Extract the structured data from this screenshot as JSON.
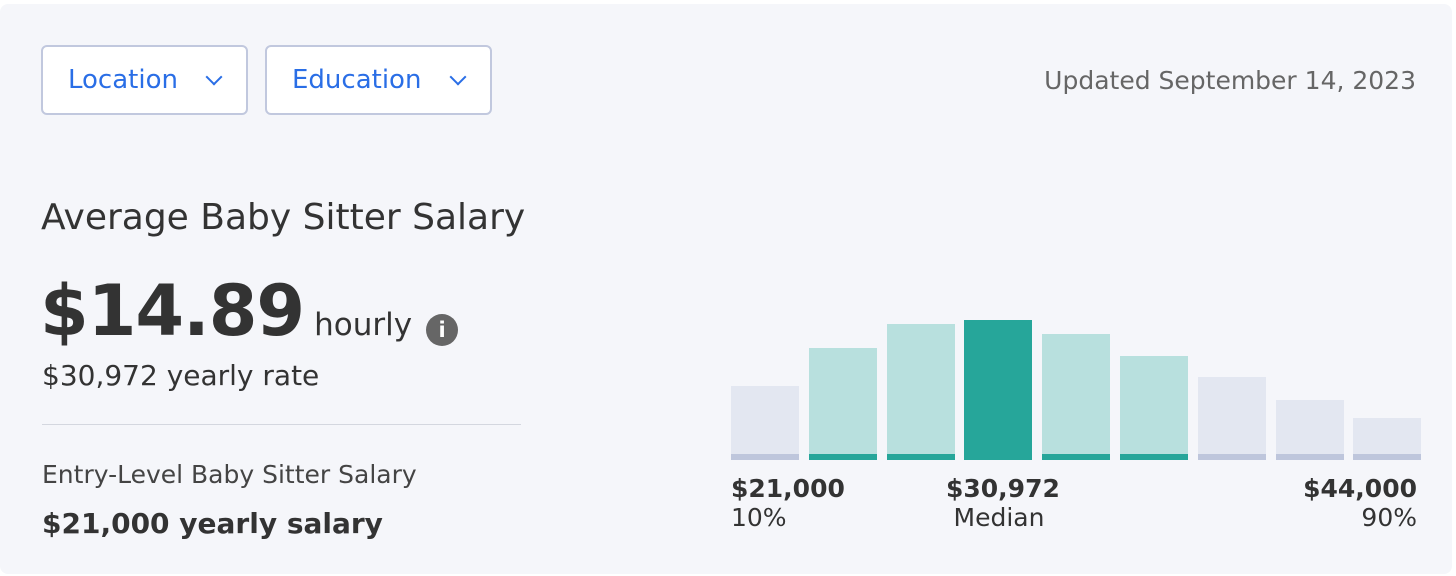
{
  "filters": [
    {
      "label": "Location"
    },
    {
      "label": "Education"
    }
  ],
  "updated": "Updated September 14, 2023",
  "title": "Average Baby Sitter Salary",
  "hourly": {
    "value": "$14.89",
    "unit": "hourly",
    "icon": "info-icon"
  },
  "yearly_rate": "$30,972 yearly rate",
  "entry": {
    "label": "Entry-Level Baby Sitter Salary",
    "value": "$21,000 yearly salary"
  },
  "colors": {
    "accent": "#2a6ee6",
    "median": "#26a69a",
    "mid": "#b8e0de",
    "outer": "#e3e7f1",
    "mid_base": "#26a69a",
    "outer_base": "#bec6dc"
  },
  "chart_data": {
    "type": "bar",
    "relative_heights": [
      53,
      80,
      97,
      100,
      90,
      74,
      59,
      43,
      30
    ],
    "tiers": [
      "outer",
      "mid",
      "mid",
      "median",
      "mid",
      "mid",
      "outer",
      "outer",
      "outer"
    ],
    "labels": [
      {
        "value": "$21,000",
        "caption": "10%"
      },
      {
        "value": "$30,972",
        "caption": "Median"
      },
      {
        "value": "$44,000",
        "caption": "90%"
      }
    ]
  }
}
